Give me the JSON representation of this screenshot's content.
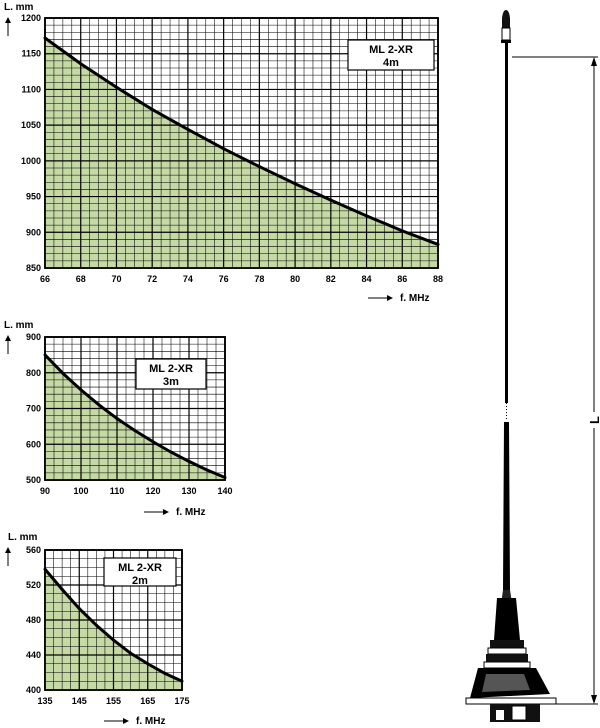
{
  "colors": {
    "fill": "#c4d9a4",
    "grid_major": "#000000",
    "grid_minor": "#000000",
    "curve": "#000000",
    "background": "#ffffff"
  },
  "chart_data": [
    {
      "type": "area",
      "title": "ML 2-XR",
      "subtitle": "4m",
      "xlabel": "f. MHz",
      "ylabel": "L. mm",
      "xlim": [
        66,
        88
      ],
      "ylim": [
        850,
        1200
      ],
      "xticks": [
        66,
        68,
        70,
        72,
        74,
        76,
        78,
        80,
        82,
        84,
        86,
        88
      ],
      "yticks": [
        850,
        900,
        950,
        1000,
        1050,
        1100,
        1150,
        1200
      ],
      "x": [
        66,
        68,
        70,
        72,
        74,
        76,
        78,
        80,
        82,
        84,
        86,
        88
      ],
      "y": [
        1172,
        1136,
        1103,
        1072,
        1044,
        1017,
        992,
        968,
        945,
        923,
        902,
        883
      ],
      "grid": true
    },
    {
      "type": "area",
      "title": "ML 2-XR",
      "subtitle": "3m",
      "xlabel": "f. MHz",
      "ylabel": "L. mm",
      "xlim": [
        90,
        140
      ],
      "ylim": [
        500,
        900
      ],
      "xticks": [
        90,
        100,
        110,
        120,
        130,
        140
      ],
      "yticks": [
        500,
        600,
        700,
        800,
        900
      ],
      "x": [
        90,
        95,
        100,
        105,
        110,
        115,
        120,
        125,
        130,
        135,
        140
      ],
      "y": [
        850,
        798,
        752,
        710,
        672,
        638,
        607,
        578,
        552,
        528,
        507
      ],
      "grid": true
    },
    {
      "type": "area",
      "title": "ML 2-XR",
      "subtitle": "2m",
      "xlabel": "f. MHz",
      "ylabel": "L. mm",
      "xlim": [
        135,
        175
      ],
      "ylim": [
        400,
        560
      ],
      "xticks": [
        135,
        145,
        155,
        165,
        175
      ],
      "yticks": [
        400,
        440,
        480,
        520,
        560
      ],
      "x": [
        135,
        140,
        145,
        150,
        155,
        160,
        165,
        170,
        175
      ],
      "y": [
        538,
        515,
        493,
        474,
        457,
        442,
        430,
        419,
        410
      ],
      "grid": true
    }
  ],
  "diagram": {
    "dimension_label": "L"
  }
}
